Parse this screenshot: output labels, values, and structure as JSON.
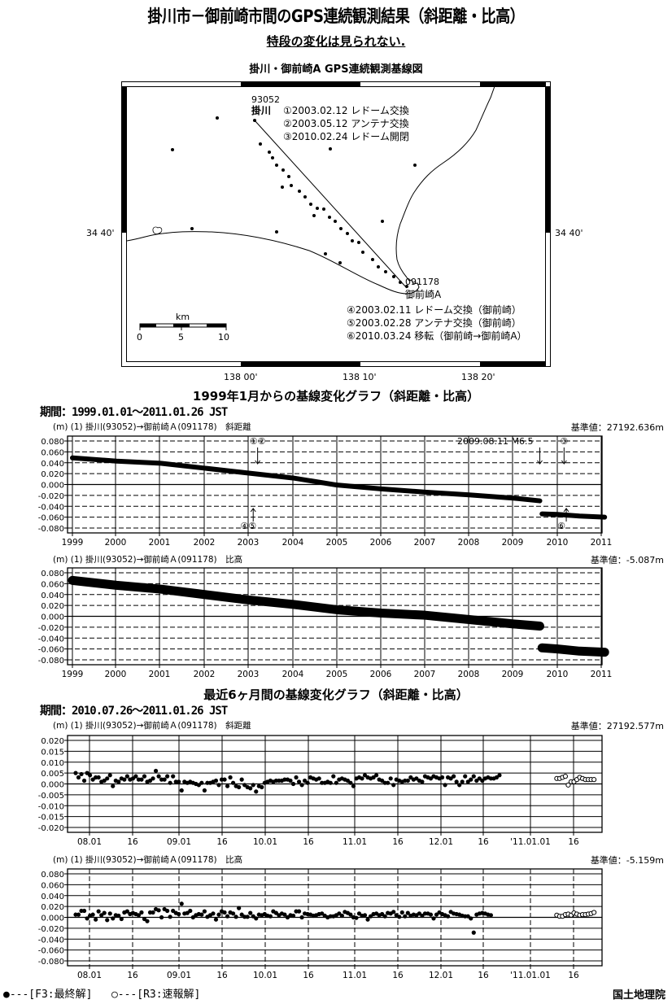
{
  "header": {
    "title": "掛川市－御前崎市間のGPS連続観測結果（斜距離・比高）",
    "subtitle": "特段の変化は見られない.",
    "map_title": "掛川・御前崎A GPS連続観測基線図"
  },
  "map": {
    "station_a": {
      "code": "93052",
      "name": "掛川"
    },
    "station_b": {
      "code": "091178",
      "name": "御前崎A"
    },
    "events_a": [
      "①2003.02.12 レドーム交換",
      "②2003.05.12 アンテナ交換",
      "③2010.02.24 レドーム開閉"
    ],
    "events_b": [
      "④2003.02.11 レドーム交換（御前崎）",
      "⑤2003.02.28 アンテナ交換（御前崎）",
      "⑥2010.03.24 移転（御前崎→御前崎A）"
    ],
    "lat_label_left": "34 40'",
    "lat_label_right": "34 40'",
    "lon_labels": [
      "138 00'",
      "138 10'",
      "138 20'"
    ],
    "scale": {
      "unit": "km",
      "ticks": [
        "0",
        "5",
        "10"
      ]
    }
  },
  "long_term": {
    "section_title": "1999年1月からの基線変化グラフ（斜距離・比高）",
    "period": "期間：1999.01.01～2011.01.26 JST"
  },
  "short_term": {
    "section_title": "最近6ヶ月間の基線変化グラフ（斜距離・比高）",
    "period": "期間：2010.07.26～2011.01.26 JST"
  },
  "footer": {
    "legend_final": "●---[F3:最終解]",
    "legend_rapid": "○---[R3:速報解]",
    "organization": "国土地理院"
  },
  "chart_data": [
    {
      "type": "scatter",
      "title": "(m) (1) 掛川(93052)→御前崎Ａ(091178)　斜距離",
      "reference_value": "基準値：27192.636m",
      "ylabel": "(m)",
      "ylim": [
        -0.08,
        0.08
      ],
      "yticks": [
        "0.080",
        "0.060",
        "0.040",
        "0.020",
        "0.000",
        "-0.020",
        "-0.040",
        "-0.060",
        "-0.080"
      ],
      "xticks": [
        "1999",
        "2000",
        "2001",
        "2002",
        "2003",
        "2004",
        "2005",
        "2006",
        "2007",
        "2008",
        "2009",
        "2010",
        "2011"
      ],
      "grid": true,
      "annotations": [
        {
          "text": "①②",
          "x": 2003.2,
          "direction": "down"
        },
        {
          "text": "④⑤",
          "x": 2003.1,
          "direction": "up"
        },
        {
          "text": "2009.08.11 M6.5",
          "x": 2009.6,
          "direction": "down"
        },
        {
          "text": "③",
          "x": 2010.15,
          "direction": "down"
        },
        {
          "text": "⑥",
          "x": 2010.2,
          "direction": "up"
        }
      ],
      "series": [
        {
          "name": "F3:最終解",
          "x": [
            1999.0,
            2000.0,
            2001.0,
            2002.0,
            2003.0,
            2004.0,
            2005.0,
            2006.0,
            2007.0,
            2008.0,
            2009.0,
            2009.6,
            2009.65,
            2010.0,
            2010.5,
            2011.07
          ],
          "y": [
            0.049,
            0.043,
            0.039,
            0.03,
            0.021,
            0.012,
            -0.001,
            -0.008,
            -0.014,
            -0.019,
            -0.025,
            -0.03,
            -0.054,
            -0.055,
            -0.058,
            -0.06
          ]
        }
      ]
    },
    {
      "type": "scatter",
      "title": "(m) (1) 掛川(93052)→御前崎Ａ(091178)　比高",
      "reference_value": "基準値：-5.087m",
      "ylabel": "(m)",
      "ylim": [
        -0.08,
        0.08
      ],
      "yticks": [
        "0.080",
        "0.060",
        "0.040",
        "0.020",
        "0.000",
        "-0.020",
        "-0.040",
        "-0.060",
        "-0.080"
      ],
      "xticks": [
        "1999",
        "2000",
        "2001",
        "2002",
        "2003",
        "2004",
        "2005",
        "2006",
        "2007",
        "2008",
        "2009",
        "2010",
        "2011"
      ],
      "grid": true,
      "series": [
        {
          "name": "F3:最終解",
          "x": [
            1999.0,
            2000.0,
            2001.0,
            2002.0,
            2003.0,
            2004.0,
            2005.0,
            2006.0,
            2007.0,
            2008.0,
            2009.0,
            2009.6,
            2009.65,
            2010.0,
            2010.5,
            2011.07
          ],
          "y": [
            0.066,
            0.057,
            0.05,
            0.04,
            0.03,
            0.022,
            0.012,
            0.006,
            0.002,
            -0.006,
            -0.014,
            -0.018,
            -0.058,
            -0.06,
            -0.064,
            -0.066
          ]
        }
      ]
    },
    {
      "type": "scatter",
      "title": "(m) (1) 掛川(93052)→御前崎Ａ(091178)　斜距離",
      "reference_value": "基準値：27192.577m",
      "ylabel": "(m)",
      "ylim": [
        -0.02,
        0.02
      ],
      "yticks": [
        "0.020",
        "0.015",
        "0.010",
        "0.005",
        "0.000",
        "-0.005",
        "-0.010",
        "-0.015",
        "-0.020"
      ],
      "xticks": [
        "08.01",
        "16",
        "09.01",
        "16",
        "10.01",
        "16",
        "11.01",
        "16",
        "12.01",
        "16",
        "'11.01.01",
        "16"
      ],
      "grid": true,
      "series": [
        {
          "name": "F3:最終解",
          "marker": "filled",
          "values": [
            0.005,
            0.003,
            0.0045,
            0.0015,
            0.005,
            0.004,
            0.002,
            0.003,
            0.003,
            0.001,
            0.0015,
            0.0025,
            0.004,
            -0.001,
            0.0015,
            0.001,
            0.0025,
            0.002,
            0.0035,
            0.002,
            0.0025,
            0.0035,
            0.002,
            0.002,
            0.0035,
            0.001,
            0.0015,
            0.0025,
            0.006,
            0.0035,
            0.002,
            0.002,
            0.0035,
            0.0005,
            0.0035,
            0.001,
            0.001,
            -0.003,
            0.001,
            0.0005,
            0.001,
            0.0005,
            0.0,
            -0.0005,
            0.0005,
            -0.003,
            0.0005,
            0.0005,
            0.001,
            0.0015,
            -0.0005,
            0.002,
            0.002,
            -0.001,
            0.003,
            0.0005,
            -0.001,
            -0.0015,
            0.002,
            -0.0005,
            -0.0015,
            -0.002,
            -0.0005,
            -0.0035,
            -0.001,
            -0.0015,
            0.0005,
            0.001,
            0.0015,
            0.001,
            0.0015,
            0.0015,
            0.0015,
            0.002,
            0.002,
            0.0015,
            0.0,
            0.003,
            0.001,
            -0.0005,
            0.0015,
            0.0005,
            0.003,
            0.0025,
            0.002,
            0.0025,
            0.0005,
            0.0005,
            0.001,
            0.0005,
            0.0035,
            0.0005,
            0.002,
            0.0025,
            0.002,
            0.0015,
            0.0005,
            -0.001,
            0.0025,
            0.003,
            0.0025,
            0.004,
            0.003,
            0.0025,
            0.003,
            0.004,
            0.002,
            0.0015,
            0.0005,
            0.0005,
            0.0025,
            -0.0005,
            0.002,
            0.0015,
            0.001,
            0.0015,
            0.0015,
            0.003,
            0.002,
            0.0025,
            0.0015,
            0.001,
            0.0035,
            0.003,
            0.0025,
            0.0035,
            0.003,
            0.0025,
            0.003,
            -0.0005,
            0.003,
            0.0025,
            0.0035,
            0.001,
            -0.0005,
            0.001,
            0.0035,
            0.001,
            0.002,
            0.0035,
            0.0015,
            0.0025,
            0.0015,
            0.0025,
            0.003,
            0.0025,
            0.0025,
            0.003,
            0.004
          ]
        },
        {
          "name": "R3:速報解",
          "marker": "open",
          "values": [
            0.0025,
            0.0025,
            0.003,
            0.0035,
            -0.0005,
            0.001,
            0.001,
            0.002,
            0.003,
            0.0025,
            0.002,
            0.002,
            0.002,
            0.002
          ]
        }
      ]
    },
    {
      "type": "scatter",
      "title": "(m) (1) 掛川(93052)→御前崎Ａ(091178)　比高",
      "reference_value": "基準値：-5.159m",
      "ylabel": "(m)",
      "ylim": [
        -0.08,
        0.08
      ],
      "yticks": [
        "0.080",
        "0.060",
        "0.040",
        "0.020",
        "0.000",
        "-0.020",
        "-0.040",
        "-0.060",
        "-0.080"
      ],
      "xticks": [
        "08.01",
        "16",
        "09.01",
        "16",
        "10.01",
        "16",
        "11.01",
        "16",
        "12.01",
        "16",
        "'11.01.01",
        "16"
      ],
      "grid": true,
      "series": [
        {
          "name": "F3:最終解",
          "marker": "filled",
          "values": [
            0.005,
            0.005,
            0.012,
            0.012,
            -0.002,
            0.003,
            0.005,
            -0.004,
            0.011,
            0.004,
            0.008,
            -0.005,
            0.007,
            -0.002,
            0.004,
            0.003,
            -0.003,
            0.009,
            0.011,
            0.006,
            0.008,
            0.006,
            0.004,
            0.009,
            -0.003,
            -0.007,
            0.009,
            0.009,
            0.015,
            0.013,
            0.0,
            0.015,
            0.012,
            0.001,
            0.012,
            0.008,
            0.006,
            0.025,
            0.007,
            0.008,
            0.012,
            0.0,
            0.004,
            0.006,
            0.005,
            0.011,
            0.001,
            0.004,
            0.007,
            -0.004,
            0.005,
            0.011,
            0.009,
            0.002,
            0.009,
            0.007,
            0.001,
            0.017,
            0.005,
            0.001,
            0.001,
            0.008,
            0.002,
            -0.002,
            0.005,
            0.004,
            0.006,
            0.003,
            0.002,
            0.011,
            0.008,
            0.004,
            0.007,
            0.005,
            0.0,
            0.004,
            0.003,
            0.011,
            0.011,
            0.0,
            0.007,
            0.006,
            0.005,
            0.003,
            0.004,
            0.006,
            0.007,
            0.003,
            0.0,
            0.002,
            0.002,
            0.004,
            0.007,
            0.003,
            0.01,
            0.008,
            0.005,
            0.0,
            -0.001,
            0.007,
            0.003,
            0.004,
            -0.004,
            0.002,
            0.006,
            0.007,
            0.004,
            0.006,
            0.002,
            0.008,
            0.007,
            0.01,
            0.004,
            0.001,
            0.009,
            0.002,
            0.008,
            0.003,
            0.005,
            0.004,
            0.007,
            0.003,
            0.007,
            0.007,
            0.005,
            -0.002,
            0.005,
            0.009,
            0.006,
            0.004,
            0.002,
            0.01,
            0.007,
            0.006,
            0.005,
            0.003,
            0.002,
            0.002,
            -0.002,
            -0.028,
            0.005,
            0.007,
            0.008,
            0.007,
            0.005,
            0.004
          ]
        },
        {
          "name": "R3:速報解",
          "marker": "open",
          "values": [
            0.004,
            0.002,
            0.002,
            0.005,
            0.006,
            0.004,
            0.008,
            0.006,
            0.004,
            0.005,
            0.005,
            0.006,
            0.007,
            0.009
          ]
        }
      ]
    }
  ]
}
